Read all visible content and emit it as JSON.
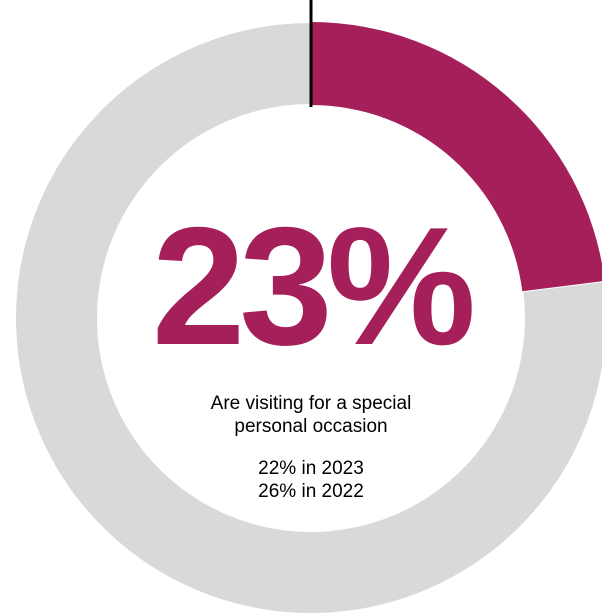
{
  "chart_data": {
    "type": "pie",
    "style": "donut",
    "value": 23,
    "unit": "%",
    "display_value": "23%",
    "caption_line1": "Are visiting for a special",
    "caption_line2": "personal occasion",
    "comparisons": [
      "22% in 2023",
      "26% in 2022"
    ],
    "start_angle_deg": 0,
    "direction": "clockwise",
    "colors": {
      "highlight": "#A5205A",
      "remainder": "#D9D9D9",
      "start_marker": "#000000"
    }
  }
}
